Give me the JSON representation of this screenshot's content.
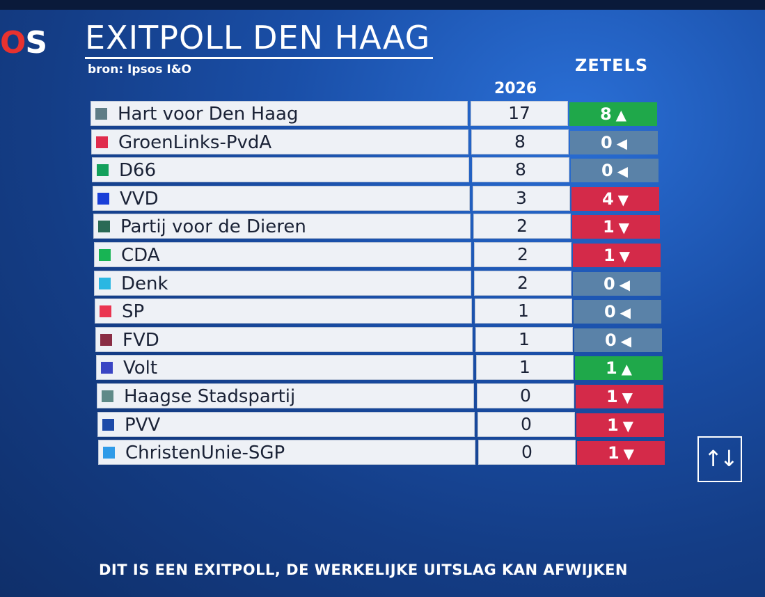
{
  "logo": {
    "text_o": "O",
    "text_s": "S"
  },
  "header": {
    "title": "EXITPOLL DEN HAAG",
    "source": "bron: Ipsos I&O",
    "seats_label": "ZETELS",
    "year_label": "2026"
  },
  "colors": {
    "increase": "#1fa84a",
    "decrease": "#d42a49",
    "unchanged": "#5a82a8"
  },
  "rows": [
    {
      "party": "Hart voor Den Haag",
      "color": "#5f7d86",
      "seats": "17",
      "change": "8",
      "direction": "up"
    },
    {
      "party": "GroenLinks-PvdA",
      "color": "#e02b4c",
      "seats": "8",
      "change": "0",
      "direction": "same"
    },
    {
      "party": "D66",
      "color": "#13a05c",
      "seats": "8",
      "change": "0",
      "direction": "same"
    },
    {
      "party": "VVD",
      "color": "#1a3fd8",
      "seats": "3",
      "change": "4",
      "direction": "down"
    },
    {
      "party": "Partij voor de Dieren",
      "color": "#2a6a55",
      "seats": "2",
      "change": "1",
      "direction": "down"
    },
    {
      "party": "CDA",
      "color": "#18b454",
      "seats": "2",
      "change": "1",
      "direction": "down"
    },
    {
      "party": "Denk",
      "color": "#2bb7e2",
      "seats": "2",
      "change": "0",
      "direction": "same"
    },
    {
      "party": "SP",
      "color": "#ea3551",
      "seats": "1",
      "change": "0",
      "direction": "same"
    },
    {
      "party": "FVD",
      "color": "#8a2d44",
      "seats": "1",
      "change": "0",
      "direction": "same"
    },
    {
      "party": "Volt",
      "color": "#3a45c4",
      "seats": "1",
      "change": "1",
      "direction": "up"
    },
    {
      "party": "Haagse Stadspartij",
      "color": "#5f8a88",
      "seats": "0",
      "change": "1",
      "direction": "down"
    },
    {
      "party": "PVV",
      "color": "#1d4aa8",
      "seats": "0",
      "change": "1",
      "direction": "down"
    },
    {
      "party": "ChristenUnie-SGP",
      "color": "#2f9be8",
      "seats": "0",
      "change": "1",
      "direction": "down"
    }
  ],
  "sort_button": {
    "label": "↑↓",
    "icon": "sort-arrows-icon"
  },
  "footer": {
    "disclaimer": "DIT IS EEN EXITPOLL, DE WERKELIJKE UITSLAG KAN AFWIJKEN"
  }
}
